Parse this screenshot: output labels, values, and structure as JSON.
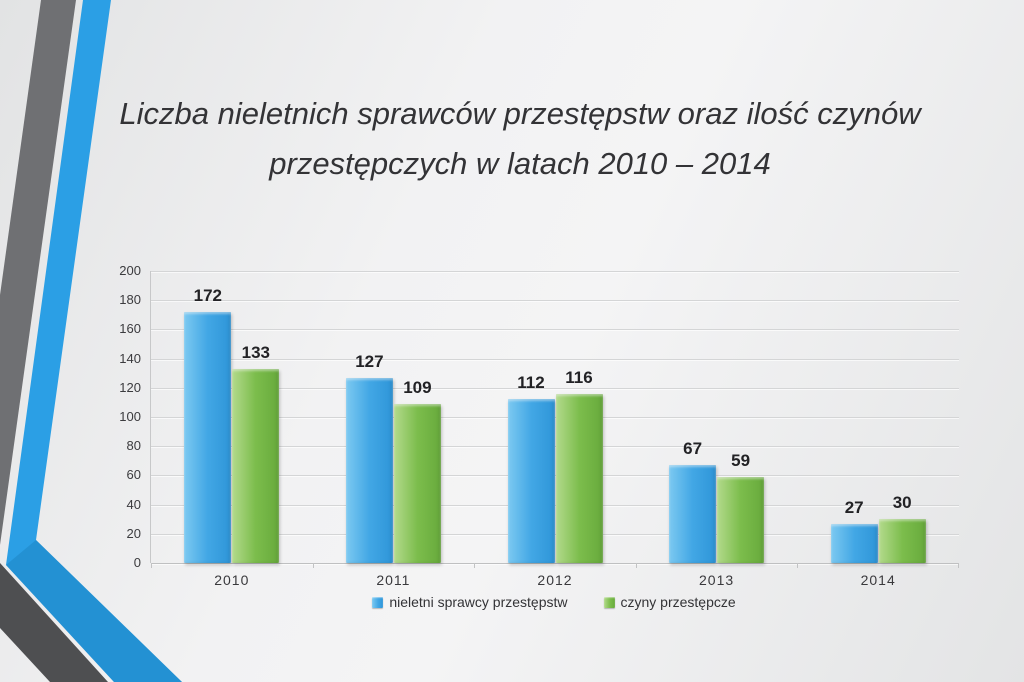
{
  "slide": {
    "title": "Liczba nieletnich sprawców przestępstw oraz ilość czynów przestępczych w latach 2010 – 2014"
  },
  "decor": {
    "top_gray": "#6f7073",
    "top_blue": "#2b9fe5",
    "diag_gray": "#4e4f51",
    "diag_blue": "#1e85c5"
  },
  "chart_data": {
    "type": "bar",
    "title": "Liczba nieletnich sprawców przestępstw oraz ilość czynów przestępczych w latach 2010 – 2014",
    "categories": [
      "2010",
      "2011",
      "2012",
      "2013",
      "2014"
    ],
    "series": [
      {
        "name": "nieletni sprawcy przestępstw",
        "values": [
          172,
          127,
          112,
          67,
          27
        ],
        "color": "#42a7e5",
        "color_light": "#7cc9f1",
        "color_dark": "#2e95d8"
      },
      {
        "name": "czyny przestępcze",
        "values": [
          133,
          109,
          116,
          59,
          30
        ],
        "color": "#7cbd4c",
        "color_light": "#b3da8c",
        "color_dark": "#67aa3c"
      }
    ],
    "xlabel": "",
    "ylabel": "",
    "ylim": [
      0,
      200
    ],
    "ytick_step": 20,
    "grid": true,
    "legend_position": "bottom"
  }
}
